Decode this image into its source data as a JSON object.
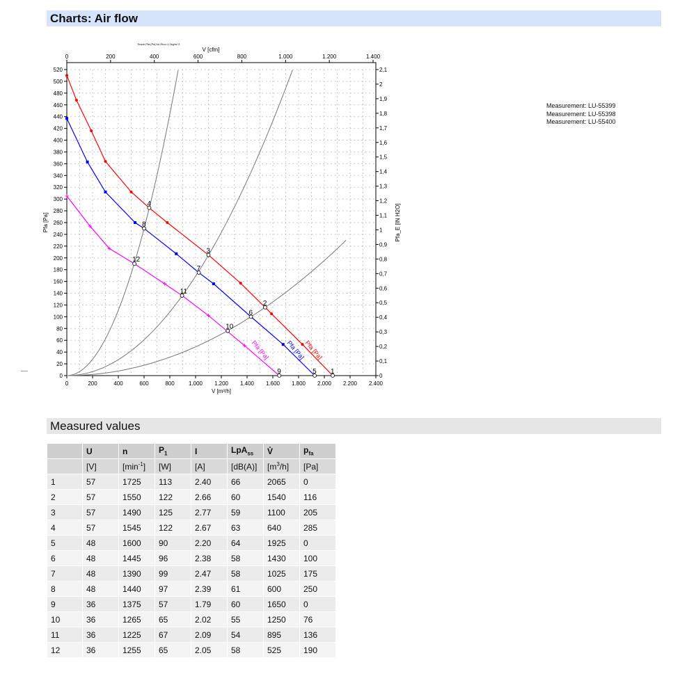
{
  "header": {
    "title": "Charts: Air flow"
  },
  "legend": [
    "Measurement: LU-55399",
    "Measurement: LU-55398",
    "Measurement: LU-55400"
  ],
  "chart_data": {
    "type": "line",
    "title": "Druck Pfa [Pa] für Rho=1,2kg/m^3",
    "xlabel": "V [m³/h]",
    "x2label": "V [cfm]",
    "ylabel": "Pfa [Pa]",
    "y2label": "Pfa_E [IN H2O]",
    "xlim": [
      0,
      2400
    ],
    "ylim": [
      0,
      520
    ],
    "x2lim_cfm": [
      0,
      1400
    ],
    "y2lim_inh2o": [
      0,
      2.1
    ],
    "x_ticks": [
      "0",
      "200",
      "400",
      "600",
      "800",
      "1.000",
      "1.200",
      "1.400",
      "1.600",
      "1.800",
      "2.000",
      "2.200",
      "2.400"
    ],
    "x2_ticks": [
      "0",
      "200",
      "400",
      "600",
      "800",
      "1.000",
      "1.200",
      "1.400"
    ],
    "y2_ticks": [
      "0",
      "0,1",
      "0,2",
      "0,3",
      "0,4",
      "0,5",
      "0,6",
      "0,7",
      "0,8",
      "0,9",
      "1",
      "1,1",
      "1,2",
      "1,3",
      "1,4",
      "1,5",
      "1,6",
      "1,7",
      "1,8",
      "1,9",
      "2",
      "2,1"
    ],
    "grid": true,
    "series": [
      {
        "name": "Pfa [Pa]",
        "color": "#ff0000",
        "marker": "circle",
        "points": [
          [
            0,
            510
          ],
          [
            75,
            468
          ],
          [
            190,
            416
          ],
          [
            300,
            364
          ],
          [
            500,
            312
          ],
          [
            640,
            285
          ],
          [
            780,
            260
          ],
          [
            1100,
            205
          ],
          [
            1350,
            157
          ],
          [
            1540,
            116
          ],
          [
            1590,
            105
          ],
          [
            1830,
            53
          ],
          [
            2065,
            0
          ]
        ]
      },
      {
        "name": "Pfa [Pa]",
        "color": "#0000ff",
        "marker": "square",
        "points": [
          [
            0,
            437
          ],
          [
            160,
            363
          ],
          [
            300,
            312
          ],
          [
            530,
            260
          ],
          [
            600,
            250
          ],
          [
            850,
            207
          ],
          [
            1025,
            175
          ],
          [
            1140,
            156
          ],
          [
            1430,
            100
          ],
          [
            1680,
            53
          ],
          [
            1925,
            0
          ]
        ]
      },
      {
        "name": "Pfa [Pa]",
        "color": "#ff00ff",
        "marker": "cross",
        "points": [
          [
            0,
            305
          ],
          [
            180,
            254
          ],
          [
            330,
            216
          ],
          [
            525,
            190
          ],
          [
            760,
            156
          ],
          [
            895,
            136
          ],
          [
            1100,
            102
          ],
          [
            1380,
            51
          ],
          [
            1650,
            0
          ]
        ]
      }
    ],
    "system_curves": [
      {
        "k": 0.000694,
        "vmax": 865
      },
      {
        "k": 0.000169,
        "vmax": 1753
      },
      {
        "k": 4.89e-05,
        "vmax": 2168
      }
    ],
    "operating_points": [
      {
        "label": "1",
        "x": 2065,
        "y": 0
      },
      {
        "label": "2",
        "x": 1540,
        "y": 116
      },
      {
        "label": "3",
        "x": 1100,
        "y": 205
      },
      {
        "label": "4",
        "x": 640,
        "y": 285
      },
      {
        "label": "5",
        "x": 1925,
        "y": 0
      },
      {
        "label": "6",
        "x": 1430,
        "y": 100
      },
      {
        "label": "7",
        "x": 1025,
        "y": 175
      },
      {
        "label": "8",
        "x": 600,
        "y": 250
      },
      {
        "label": "9",
        "x": 1650,
        "y": 0
      },
      {
        "label": "10",
        "x": 1250,
        "y": 76
      },
      {
        "label": "11",
        "x": 895,
        "y": 136
      },
      {
        "label": "12",
        "x": 525,
        "y": 190
      }
    ]
  },
  "measured": {
    "title": "Measured values",
    "headers": [
      "",
      "U",
      "n",
      "P",
      "I",
      "LpA",
      "V̊",
      "p"
    ],
    "header_subs": [
      "",
      "",
      "",
      "1",
      "",
      "ss",
      "",
      "fa"
    ],
    "units": [
      "",
      "[V]",
      "[min",
      "[W]",
      "[A]",
      "[dB(A)]",
      "[m",
      "[Pa]"
    ],
    "unit_sups": [
      "",
      "",
      "-1",
      "",
      "",
      "",
      "3",
      ""
    ],
    "unit_tails": [
      "",
      "",
      "]",
      "",
      "",
      "",
      "/h]",
      ""
    ],
    "rows": [
      [
        "1",
        "57",
        "1725",
        "113",
        "2.40",
        "66",
        "2065",
        "0"
      ],
      [
        "2",
        "57",
        "1550",
        "122",
        "2.66",
        "60",
        "1540",
        "116"
      ],
      [
        "3",
        "57",
        "1490",
        "125",
        "2.77",
        "59",
        "1100",
        "205"
      ],
      [
        "4",
        "57",
        "1545",
        "122",
        "2.67",
        "63",
        "640",
        "285"
      ],
      [
        "5",
        "48",
        "1600",
        "90",
        "2.20",
        "64",
        "1925",
        "0"
      ],
      [
        "6",
        "48",
        "1445",
        "96",
        "2.38",
        "58",
        "1430",
        "100"
      ],
      [
        "7",
        "48",
        "1390",
        "99",
        "2.47",
        "58",
        "1025",
        "175"
      ],
      [
        "8",
        "48",
        "1440",
        "97",
        "2.39",
        "61",
        "600",
        "250"
      ],
      [
        "9",
        "36",
        "1375",
        "57",
        "1.79",
        "60",
        "1650",
        "0"
      ],
      [
        "10",
        "36",
        "1265",
        "65",
        "2.02",
        "55",
        "1250",
        "76"
      ],
      [
        "11",
        "36",
        "1225",
        "67",
        "2.09",
        "54",
        "895",
        "136"
      ],
      [
        "12",
        "36",
        "1255",
        "65",
        "2.05",
        "58",
        "525",
        "190"
      ]
    ]
  }
}
